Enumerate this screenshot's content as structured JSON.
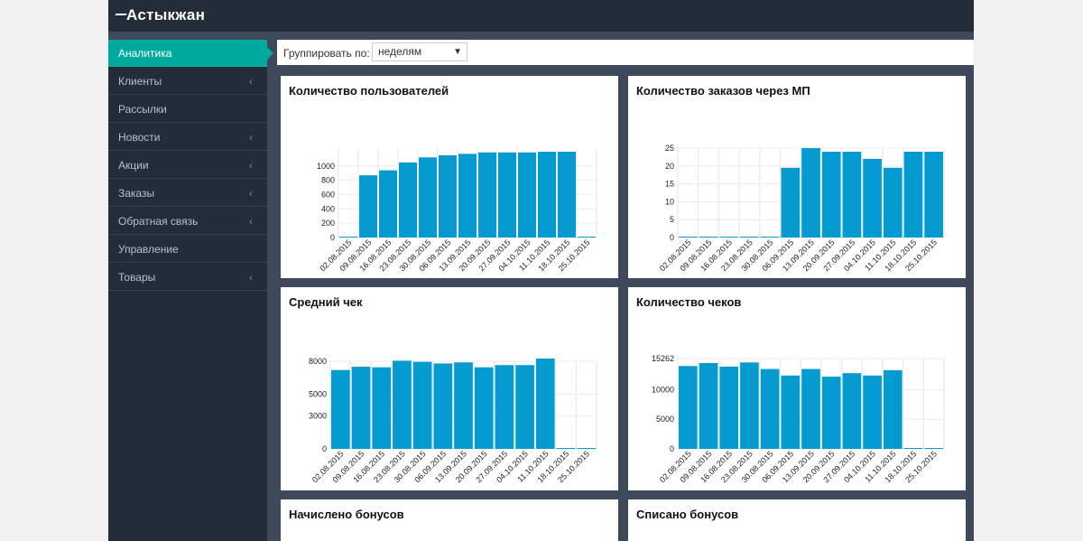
{
  "header": {
    "logo_text": "Астыкжан",
    "logo": "astykzhan-logo"
  },
  "sidebar": {
    "items": [
      {
        "label": "Аналитика",
        "active": true,
        "has_children": false
      },
      {
        "label": "Клиенты",
        "active": false,
        "has_children": true
      },
      {
        "label": "Рассылки",
        "active": false,
        "has_children": false
      },
      {
        "label": "Новости",
        "active": false,
        "has_children": true
      },
      {
        "label": "Акции",
        "active": false,
        "has_children": true
      },
      {
        "label": "Заказы",
        "active": false,
        "has_children": true
      },
      {
        "label": "Обратная связь",
        "active": false,
        "has_children": true
      },
      {
        "label": "Управление",
        "active": false,
        "has_children": false
      },
      {
        "label": "Товары",
        "active": false,
        "has_children": true
      }
    ]
  },
  "filter": {
    "label": "Группировать по:",
    "selected": "неделям"
  },
  "colors": {
    "accent": "#00a99d",
    "bar": "#069bd0",
    "sidebar_bg": "#222d39",
    "content_bg": "#3e4a5c"
  },
  "chart_data": [
    {
      "type": "bar",
      "title": "Количество пользователей",
      "categories": [
        "02.08.2015",
        "09.08.2015",
        "16.08.2015",
        "23.08.2015",
        "30.08.2015",
        "06.09.2015",
        "13.09.2015",
        "20.09.2015",
        "27.09.2015",
        "04.10.2015",
        "11.10.2015",
        "18.10.2015",
        "25.10.2015"
      ],
      "values": [
        0,
        870,
        940,
        1050,
        1120,
        1150,
        1170,
        1190,
        1190,
        1190,
        1200,
        1200,
        0
      ],
      "yticks": [
        "0",
        "200",
        "400",
        "600",
        "800",
        "1000"
      ],
      "ylim": [
        0,
        1250
      ]
    },
    {
      "type": "bar",
      "title": "Количество заказов через МП",
      "categories": [
        "02.08.2015",
        "09.08.2015",
        "16.08.2015",
        "23.08.2015",
        "30.08.2015",
        "06.09.2015",
        "13.09.2015",
        "20.09.2015",
        "27.09.2015",
        "04.10.2015",
        "11.10.2015",
        "18.10.2015",
        "25.10.2015"
      ],
      "values": [
        0,
        0,
        0,
        0,
        0,
        19.5,
        25,
        24,
        24,
        22,
        19.5,
        24,
        24
      ],
      "yticks": [
        "0",
        "5",
        "10",
        "15",
        "20",
        "25"
      ],
      "ylim": [
        0,
        25
      ]
    },
    {
      "type": "bar",
      "title": "Средний чек",
      "categories": [
        "02.08.2015",
        "09.08.2015",
        "16.08.2015",
        "23.08.2015",
        "30.08.2015",
        "06.09.2015",
        "13.09.2015",
        "20.09.2015",
        "27.09.2015",
        "04.10.2015",
        "11.10.2015",
        "18.10.2015",
        "25.10.2015"
      ],
      "values": [
        7200,
        7500,
        7450,
        8050,
        7950,
        7800,
        7900,
        7450,
        7650,
        7650,
        8250,
        0,
        0
      ],
      "yticks": [
        "0",
        "3000",
        "5000",
        "8000"
      ],
      "ylim": [
        0,
        8000
      ]
    },
    {
      "type": "bar",
      "title": "Количество чеков",
      "categories": [
        "02.08.2015",
        "09.08.2015",
        "16.08.2015",
        "23.08.2015",
        "30.08.2015",
        "06.09.2015",
        "13.09.2015",
        "20.09.2015",
        "27.09.2015",
        "04.10.2015",
        "11.10.2015",
        "18.10.2015",
        "25.10.2015"
      ],
      "values": [
        14000,
        14500,
        13900,
        14600,
        13500,
        12400,
        13500,
        12200,
        12800,
        12400,
        13300,
        0,
        0
      ],
      "yticks": [
        "0",
        "5000",
        "10000",
        "15262"
      ],
      "ylim": [
        0,
        15262
      ]
    },
    {
      "type": "bar",
      "title": "Начислено бонусов"
    },
    {
      "type": "bar",
      "title": "Списано бонусов"
    }
  ]
}
